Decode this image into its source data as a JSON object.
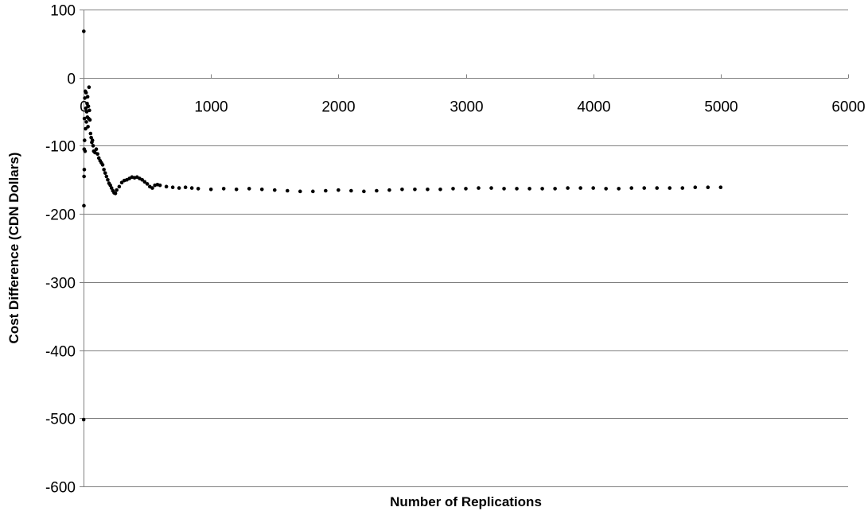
{
  "chart_data": {
    "type": "scatter",
    "title": "",
    "xlabel": "Number of Replications",
    "ylabel": "Cost Difference (CDN Dollars)",
    "xlim": [
      0,
      6000
    ],
    "ylim": [
      -600,
      100
    ],
    "x_ticks": [
      "0",
      "1000",
      "2000",
      "3000",
      "4000",
      "5000",
      "6000"
    ],
    "y_ticks": [
      "100",
      "0",
      "-100",
      "-200",
      "-300",
      "-400",
      "-500",
      "-600"
    ],
    "x_axis_crosses_y_at": 0,
    "grid": "horizontal",
    "legend": "none",
    "marker_color": "#000000",
    "series": [
      {
        "points": [
          [
            1,
            -502
          ],
          [
            2,
            68
          ],
          [
            3,
            -188
          ],
          [
            4,
            -145
          ],
          [
            5,
            -105
          ],
          [
            6,
            -135
          ],
          [
            7,
            -60
          ],
          [
            8,
            -92
          ],
          [
            10,
            -30
          ],
          [
            12,
            -108
          ],
          [
            14,
            -20
          ],
          [
            16,
            -75
          ],
          [
            18,
            -45
          ],
          [
            20,
            -22
          ],
          [
            22,
            -65
          ],
          [
            25,
            -50
          ],
          [
            28,
            -38
          ],
          [
            30,
            -58
          ],
          [
            32,
            -28
          ],
          [
            35,
            -72
          ],
          [
            38,
            -42
          ],
          [
            40,
            -60
          ],
          [
            43,
            -14
          ],
          [
            46,
            -48
          ],
          [
            50,
            -62
          ],
          [
            55,
            -82
          ],
          [
            60,
            -88
          ],
          [
            65,
            -95
          ],
          [
            70,
            -92
          ],
          [
            75,
            -100
          ],
          [
            80,
            -108
          ],
          [
            90,
            -110
          ],
          [
            100,
            -105
          ],
          [
            110,
            -112
          ],
          [
            120,
            -118
          ],
          [
            130,
            -122
          ],
          [
            140,
            -125
          ],
          [
            150,
            -128
          ],
          [
            160,
            -135
          ],
          [
            170,
            -140
          ],
          [
            180,
            -145
          ],
          [
            190,
            -150
          ],
          [
            200,
            -155
          ],
          [
            210,
            -158
          ],
          [
            220,
            -162
          ],
          [
            230,
            -166
          ],
          [
            240,
            -169
          ],
          [
            250,
            -170
          ],
          [
            260,
            -165
          ],
          [
            280,
            -160
          ],
          [
            300,
            -154
          ],
          [
            320,
            -151
          ],
          [
            340,
            -150
          ],
          [
            360,
            -148
          ],
          [
            380,
            -146
          ],
          [
            400,
            -147
          ],
          [
            420,
            -146
          ],
          [
            440,
            -148
          ],
          [
            460,
            -150
          ],
          [
            480,
            -153
          ],
          [
            500,
            -156
          ],
          [
            520,
            -160
          ],
          [
            540,
            -162
          ],
          [
            560,
            -158
          ],
          [
            580,
            -157
          ],
          [
            600,
            -158
          ],
          [
            650,
            -160
          ],
          [
            700,
            -161
          ],
          [
            750,
            -162
          ],
          [
            800,
            -161
          ],
          [
            850,
            -162
          ],
          [
            900,
            -163
          ],
          [
            1000,
            -164
          ],
          [
            1100,
            -163
          ],
          [
            1200,
            -164
          ],
          [
            1300,
            -163
          ],
          [
            1400,
            -164
          ],
          [
            1500,
            -165
          ],
          [
            1600,
            -166
          ],
          [
            1700,
            -167
          ],
          [
            1800,
            -167
          ],
          [
            1900,
            -166
          ],
          [
            2000,
            -165
          ],
          [
            2100,
            -166
          ],
          [
            2200,
            -167
          ],
          [
            2300,
            -166
          ],
          [
            2400,
            -165
          ],
          [
            2500,
            -164
          ],
          [
            2600,
            -164
          ],
          [
            2700,
            -164
          ],
          [
            2800,
            -164
          ],
          [
            2900,
            -163
          ],
          [
            3000,
            -163
          ],
          [
            3100,
            -162
          ],
          [
            3200,
            -162
          ],
          [
            3300,
            -163
          ],
          [
            3400,
            -163
          ],
          [
            3500,
            -163
          ],
          [
            3600,
            -163
          ],
          [
            3700,
            -163
          ],
          [
            3800,
            -162
          ],
          [
            3900,
            -162
          ],
          [
            4000,
            -162
          ],
          [
            4100,
            -163
          ],
          [
            4200,
            -163
          ],
          [
            4300,
            -162
          ],
          [
            4400,
            -162
          ],
          [
            4500,
            -162
          ],
          [
            4600,
            -162
          ],
          [
            4700,
            -162
          ],
          [
            4800,
            -161
          ],
          [
            4900,
            -161
          ],
          [
            5000,
            -161
          ]
        ]
      }
    ]
  }
}
